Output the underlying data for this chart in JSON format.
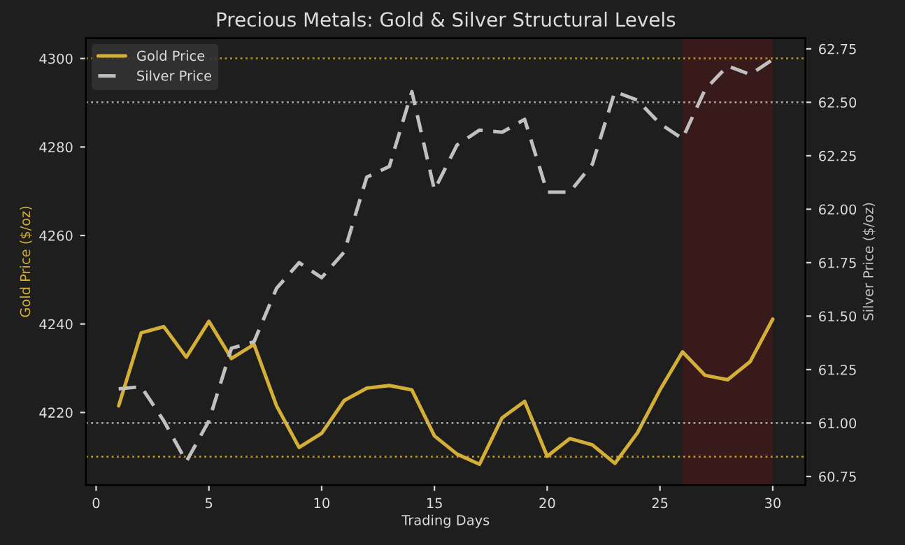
{
  "chart_data": {
    "type": "line",
    "title": "Precious Metals: Gold & Silver Structural Levels",
    "xlabel": "Trading Days",
    "ylabel": "Gold Price ($/oz)",
    "y2label": "Silver Price ($/oz)",
    "x": [
      1,
      2,
      3,
      4,
      5,
      6,
      7,
      8,
      9,
      10,
      11,
      12,
      13,
      14,
      15,
      16,
      17,
      18,
      19,
      20,
      21,
      22,
      23,
      24,
      25,
      26,
      27,
      28,
      29,
      30
    ],
    "series": [
      {
        "name": "Gold Price",
        "color": "#d4af37",
        "line_style": "solid",
        "values": [
          4221.5,
          4238.0,
          4239.4,
          4232.5,
          4240.6,
          4232.2,
          4235.4,
          4221.5,
          4212.1,
          4215.3,
          4222.7,
          4225.5,
          4226.1,
          4225.1,
          4214.7,
          4210.6,
          4208.3,
          4218.8,
          4222.5,
          4210.1,
          4214.1,
          4212.7,
          4208.5,
          4215.4,
          4225.1,
          4233.7,
          4228.4,
          4227.4,
          4231.5,
          4241.1
        ]
      },
      {
        "name": "Silver Price",
        "color": "#c0c0c0",
        "line_style": "dashed",
        "axis": "y2",
        "values": [
          61.16,
          61.17,
          61.01,
          60.82,
          61.01,
          61.35,
          61.38,
          61.63,
          61.75,
          61.68,
          61.8,
          62.15,
          62.2,
          62.55,
          62.09,
          62.3,
          62.37,
          62.36,
          62.42,
          62.08,
          62.08,
          62.21,
          62.55,
          62.51,
          62.4,
          62.33,
          62.56,
          62.67,
          62.63,
          62.7
        ]
      }
    ],
    "xlim": [
      -0.45,
      31.45
    ],
    "xticks": [
      0,
      5,
      10,
      15,
      20,
      25,
      30
    ],
    "ylim": [
      4203.6,
      4304.6
    ],
    "yticks": [
      4220,
      4240,
      4260,
      4280,
      4300
    ],
    "y2lim": [
      60.71,
      62.8
    ],
    "y2ticks": [
      {
        "value": 60.75,
        "label": "60.75"
      },
      {
        "value": 61.0,
        "label": "61.00"
      },
      {
        "value": 61.25,
        "label": "61.25"
      },
      {
        "value": 61.5,
        "label": "61.50"
      },
      {
        "value": 61.75,
        "label": "61.75"
      },
      {
        "value": 62.0,
        "label": "62.00"
      },
      {
        "value": 62.25,
        "label": "62.25"
      },
      {
        "value": 62.5,
        "label": "62.50"
      },
      {
        "value": 62.75,
        "label": "62.75"
      }
    ],
    "ref_lines": [
      {
        "axis": "y",
        "value": 4300,
        "color": "#d4af37",
        "line_style": "dotted"
      },
      {
        "axis": "y",
        "value": 4210,
        "color": "#d4af37",
        "line_style": "dotted"
      },
      {
        "axis": "y2",
        "value": 62.5,
        "color": "#c0c0c0",
        "line_style": "dotted"
      },
      {
        "axis": "y2",
        "value": 61.0,
        "color": "#c0c0c0",
        "line_style": "dotted"
      }
    ],
    "bands": [
      {
        "axis": "x",
        "from": 26,
        "to": 30,
        "color": "#4a1818"
      }
    ],
    "legend": "top left",
    "grid": false
  }
}
